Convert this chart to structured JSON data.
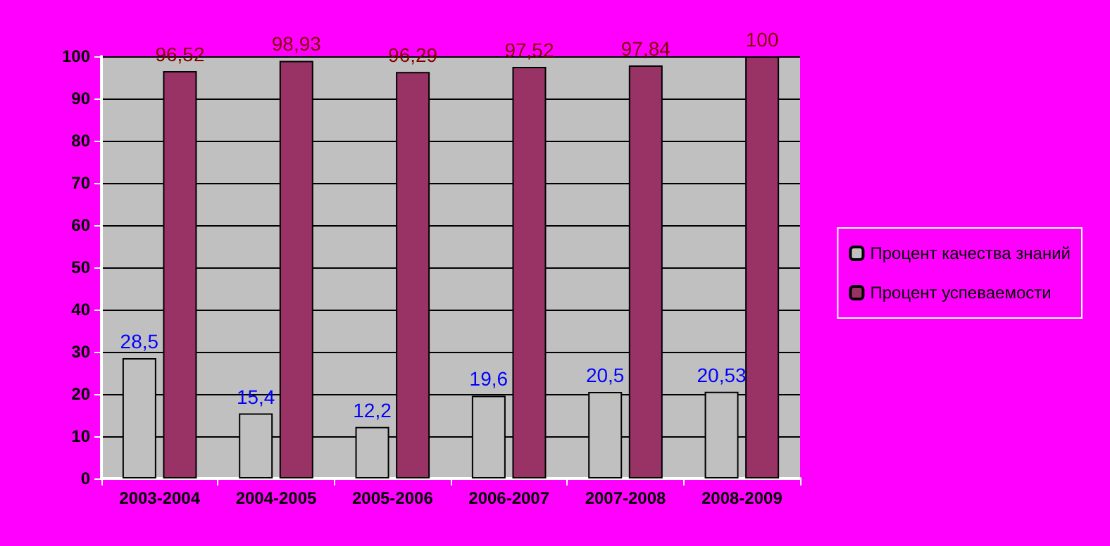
{
  "chart_data": {
    "type": "bar",
    "categories": [
      "2003-2004",
      "2004-2005",
      "2005-2006",
      "2006-2007",
      "2007-2008",
      "2008-2009"
    ],
    "series": [
      {
        "name": "Процент качества знаний",
        "color": "#c0c0c0",
        "values": [
          28.5,
          15.4,
          12.2,
          19.6,
          20.5,
          20.53
        ],
        "value_labels": [
          "28,5",
          "15,4",
          "12,2",
          "19,6",
          "20,5",
          "20,53"
        ]
      },
      {
        "name": "Процент успеваемости",
        "color": "#993366",
        "values": [
          96.52,
          98.93,
          96.29,
          97.52,
          97.84,
          100
        ],
        "value_labels": [
          "96,52",
          "98,93",
          "96,29",
          "97,52",
          "97,84",
          "100"
        ]
      }
    ],
    "ylim": [
      0,
      100
    ],
    "yticks": [
      0,
      10,
      20,
      30,
      40,
      50,
      60,
      70,
      80,
      90,
      100
    ],
    "grid": "y",
    "legend": "right"
  }
}
